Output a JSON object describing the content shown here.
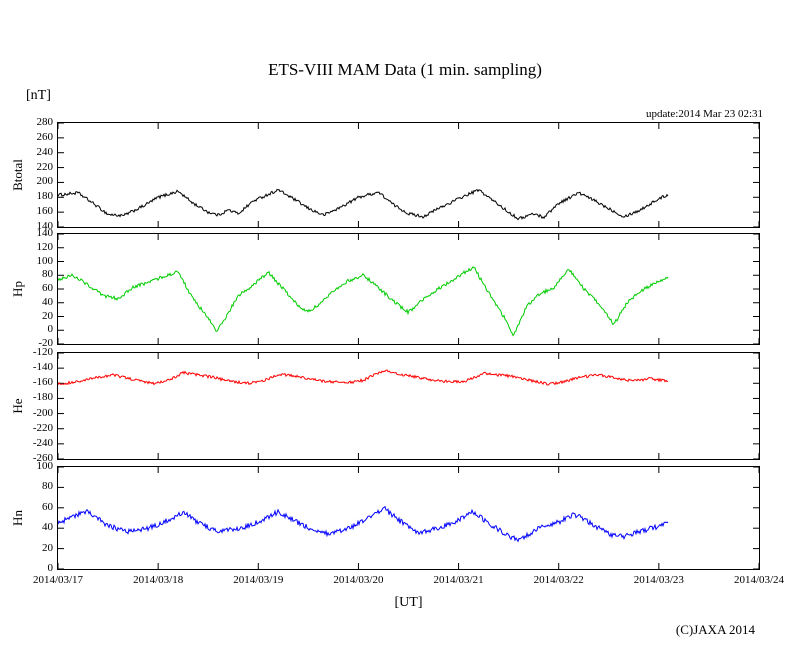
{
  "title": "ETS-VIII MAM Data (1 min. sampling)",
  "unit_label": "[nT]",
  "update_text": "update:2014 Mar 23 02:31",
  "xaxis_label": "[UT]",
  "copyright": "(C)JAXA 2014",
  "chart_data": {
    "type": "line",
    "title": "ETS-VIII MAM Data (1 min. sampling)",
    "xlabel": "[UT]",
    "ylabel": "[nT]",
    "grid": false,
    "legend": "none",
    "x_tick_labels": [
      "2014/03/17",
      "2014/03/18",
      "2014/03/19",
      "2014/03/20",
      "2014/03/21",
      "2014/03/22",
      "2014/03/23",
      "2014/03/24"
    ],
    "x_range_days": [
      0,
      7
    ],
    "x_data_end_days": 6.1,
    "panels": [
      {
        "name": "Btotal",
        "color": "#000000",
        "ylim": [
          140,
          280
        ],
        "ytick_step": 20,
        "noise": 2,
        "points": [
          [
            0,
            183
          ],
          [
            0.2,
            186
          ],
          [
            0.35,
            172
          ],
          [
            0.5,
            157
          ],
          [
            0.65,
            155
          ],
          [
            0.85,
            168
          ],
          [
            1.0,
            180
          ],
          [
            1.2,
            188
          ],
          [
            1.35,
            172
          ],
          [
            1.5,
            160
          ],
          [
            1.6,
            156
          ],
          [
            1.7,
            163
          ],
          [
            1.8,
            158
          ],
          [
            1.95,
            175
          ],
          [
            2.2,
            190
          ],
          [
            2.35,
            178
          ],
          [
            2.5,
            165
          ],
          [
            2.65,
            156
          ],
          [
            2.8,
            165
          ],
          [
            3.0,
            180
          ],
          [
            3.2,
            187
          ],
          [
            3.35,
            170
          ],
          [
            3.5,
            158
          ],
          [
            3.65,
            154
          ],
          [
            3.8,
            165
          ],
          [
            4.0,
            178
          ],
          [
            4.2,
            190
          ],
          [
            4.35,
            175
          ],
          [
            4.5,
            160
          ],
          [
            4.6,
            151
          ],
          [
            4.75,
            158
          ],
          [
            4.85,
            153
          ],
          [
            5.0,
            172
          ],
          [
            5.2,
            186
          ],
          [
            5.35,
            176
          ],
          [
            5.5,
            165
          ],
          [
            5.65,
            154
          ],
          [
            5.8,
            162
          ],
          [
            6.0,
            178
          ],
          [
            6.1,
            184
          ]
        ]
      },
      {
        "name": "Hp",
        "color": "#00cc00",
        "ylim": [
          -20,
          140
        ],
        "ytick_step": 20,
        "noise": 2.5,
        "points": [
          [
            0,
            74
          ],
          [
            0.15,
            80
          ],
          [
            0.3,
            66
          ],
          [
            0.45,
            50
          ],
          [
            0.6,
            46
          ],
          [
            0.75,
            62
          ],
          [
            0.9,
            70
          ],
          [
            1.05,
            78
          ],
          [
            1.2,
            85
          ],
          [
            1.35,
            45
          ],
          [
            1.5,
            18
          ],
          [
            1.58,
            -2
          ],
          [
            1.68,
            20
          ],
          [
            1.8,
            50
          ],
          [
            1.95,
            66
          ],
          [
            2.1,
            84
          ],
          [
            2.25,
            60
          ],
          [
            2.4,
            35
          ],
          [
            2.5,
            28
          ],
          [
            2.62,
            38
          ],
          [
            2.75,
            58
          ],
          [
            2.9,
            72
          ],
          [
            3.05,
            80
          ],
          [
            3.2,
            62
          ],
          [
            3.35,
            42
          ],
          [
            3.5,
            26
          ],
          [
            3.65,
            45
          ],
          [
            3.8,
            60
          ],
          [
            3.95,
            74
          ],
          [
            4.15,
            92
          ],
          [
            4.3,
            55
          ],
          [
            4.45,
            20
          ],
          [
            4.55,
            -8
          ],
          [
            4.68,
            35
          ],
          [
            4.8,
            52
          ],
          [
            4.95,
            62
          ],
          [
            5.1,
            90
          ],
          [
            5.25,
            60
          ],
          [
            5.4,
            38
          ],
          [
            5.55,
            8
          ],
          [
            5.68,
            40
          ],
          [
            5.8,
            55
          ],
          [
            5.95,
            68
          ],
          [
            6.1,
            78
          ]
        ]
      },
      {
        "name": "He",
        "color": "#ff0000",
        "ylim": [
          -260,
          -120
        ],
        "ytick_step": 20,
        "noise": 1.8,
        "points": [
          [
            0,
            -161
          ],
          [
            0.2,
            -158
          ],
          [
            0.4,
            -152
          ],
          [
            0.55,
            -149
          ],
          [
            0.75,
            -155
          ],
          [
            0.95,
            -160
          ],
          [
            1.1,
            -156
          ],
          [
            1.25,
            -146
          ],
          [
            1.4,
            -149
          ],
          [
            1.55,
            -152
          ],
          [
            1.7,
            -157
          ],
          [
            1.9,
            -160
          ],
          [
            2.05,
            -157
          ],
          [
            2.2,
            -148
          ],
          [
            2.35,
            -150
          ],
          [
            2.5,
            -154
          ],
          [
            2.7,
            -158
          ],
          [
            2.9,
            -159
          ],
          [
            3.05,
            -156
          ],
          [
            3.25,
            -143
          ],
          [
            3.4,
            -148
          ],
          [
            3.55,
            -151
          ],
          [
            3.7,
            -155
          ],
          [
            3.9,
            -158
          ],
          [
            4.05,
            -158
          ],
          [
            4.25,
            -147
          ],
          [
            4.4,
            -149
          ],
          [
            4.55,
            -151
          ],
          [
            4.7,
            -156
          ],
          [
            4.9,
            -161
          ],
          [
            5.05,
            -158
          ],
          [
            5.2,
            -152
          ],
          [
            5.4,
            -149
          ],
          [
            5.6,
            -154
          ],
          [
            5.75,
            -157
          ],
          [
            5.9,
            -154
          ],
          [
            6.1,
            -157
          ]
        ]
      },
      {
        "name": "Hn",
        "color": "#0000ff",
        "ylim": [
          0,
          100
        ],
        "ytick_step": 20,
        "noise": 2.5,
        "points": [
          [
            0,
            44
          ],
          [
            0.15,
            52
          ],
          [
            0.3,
            56
          ],
          [
            0.5,
            42
          ],
          [
            0.7,
            37
          ],
          [
            0.9,
            40
          ],
          [
            1.1,
            48
          ],
          [
            1.25,
            56
          ],
          [
            1.4,
            45
          ],
          [
            1.6,
            37
          ],
          [
            1.8,
            39
          ],
          [
            2.0,
            46
          ],
          [
            2.2,
            56
          ],
          [
            2.35,
            48
          ],
          [
            2.55,
            38
          ],
          [
            2.7,
            34
          ],
          [
            2.9,
            40
          ],
          [
            3.1,
            50
          ],
          [
            3.25,
            60
          ],
          [
            3.4,
            48
          ],
          [
            3.6,
            36
          ],
          [
            3.8,
            40
          ],
          [
            4.0,
            48
          ],
          [
            4.15,
            56
          ],
          [
            4.3,
            45
          ],
          [
            4.5,
            32
          ],
          [
            4.6,
            28
          ],
          [
            4.8,
            40
          ],
          [
            5.0,
            46
          ],
          [
            5.15,
            54
          ],
          [
            5.3,
            46
          ],
          [
            5.5,
            34
          ],
          [
            5.65,
            32
          ],
          [
            5.85,
            38
          ],
          [
            6.0,
            42
          ],
          [
            6.1,
            47
          ]
        ]
      }
    ]
  }
}
